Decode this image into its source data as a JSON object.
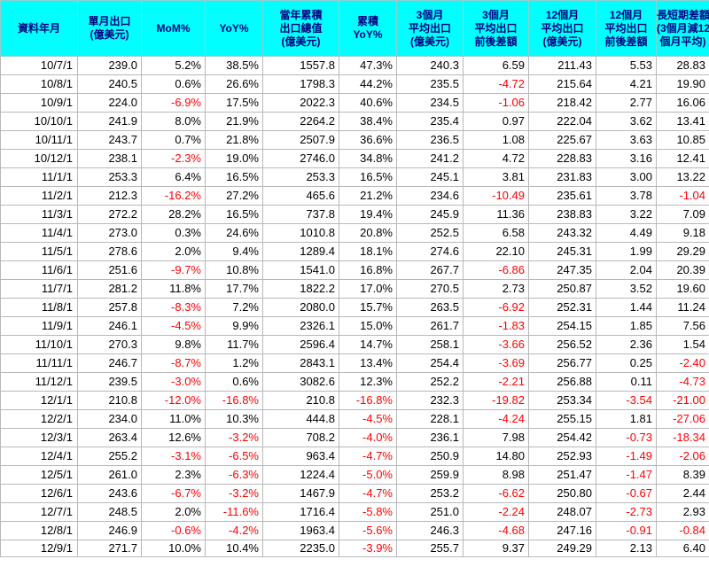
{
  "headers": [
    [
      "資料年月"
    ],
    [
      "單月出口",
      "(億美元)"
    ],
    [
      "MoM%"
    ],
    [
      "YoY%"
    ],
    [
      "當年累積",
      "出口總值",
      "(億美元)"
    ],
    [
      "累積",
      "YoY%"
    ],
    [
      "3個月",
      "平均出口",
      "(億美元)"
    ],
    [
      "3個月",
      "平均出口",
      "前後差額"
    ],
    [
      "12個月",
      "平均出口",
      "(億美元)"
    ],
    [
      "12個月",
      "平均出口",
      "前後差額"
    ],
    [
      "長短期差額",
      "(3個月減12",
      "個月平均)"
    ]
  ],
  "rows": [
    [
      "10/7/1",
      "239.0",
      "5.2%",
      "38.5%",
      "1557.8",
      "47.3%",
      "240.3",
      "6.59",
      "211.43",
      "5.53",
      "28.83"
    ],
    [
      "10/8/1",
      "240.5",
      "0.6%",
      "26.6%",
      "1798.3",
      "44.2%",
      "235.5",
      "-4.72",
      "215.64",
      "4.21",
      "19.90"
    ],
    [
      "10/9/1",
      "224.0",
      "-6.9%",
      "17.5%",
      "2022.3",
      "40.6%",
      "234.5",
      "-1.06",
      "218.42",
      "2.77",
      "16.06"
    ],
    [
      "10/10/1",
      "241.9",
      "8.0%",
      "21.9%",
      "2264.2",
      "38.4%",
      "235.4",
      "0.97",
      "222.04",
      "3.62",
      "13.41"
    ],
    [
      "10/11/1",
      "243.7",
      "0.7%",
      "21.8%",
      "2507.9",
      "36.6%",
      "236.5",
      "1.08",
      "225.67",
      "3.63",
      "10.85"
    ],
    [
      "10/12/1",
      "238.1",
      "-2.3%",
      "19.0%",
      "2746.0",
      "34.8%",
      "241.2",
      "4.72",
      "228.83",
      "3.16",
      "12.41"
    ],
    [
      "11/1/1",
      "253.3",
      "6.4%",
      "16.5%",
      "253.3",
      "16.5%",
      "245.1",
      "3.81",
      "231.83",
      "3.00",
      "13.22"
    ],
    [
      "11/2/1",
      "212.3",
      "-16.2%",
      "27.2%",
      "465.6",
      "21.2%",
      "234.6",
      "-10.49",
      "235.61",
      "3.78",
      "-1.04"
    ],
    [
      "11/3/1",
      "272.2",
      "28.2%",
      "16.5%",
      "737.8",
      "19.4%",
      "245.9",
      "11.36",
      "238.83",
      "3.22",
      "7.09"
    ],
    [
      "11/4/1",
      "273.0",
      "0.3%",
      "24.6%",
      "1010.8",
      "20.8%",
      "252.5",
      "6.58",
      "243.32",
      "4.49",
      "9.18"
    ],
    [
      "11/5/1",
      "278.6",
      "2.0%",
      "9.4%",
      "1289.4",
      "18.1%",
      "274.6",
      "22.10",
      "245.31",
      "1.99",
      "29.29"
    ],
    [
      "11/6/1",
      "251.6",
      "-9.7%",
      "10.8%",
      "1541.0",
      "16.8%",
      "267.7",
      "-6.86",
      "247.35",
      "2.04",
      "20.39"
    ],
    [
      "11/7/1",
      "281.2",
      "11.8%",
      "17.7%",
      "1822.2",
      "17.0%",
      "270.5",
      "2.73",
      "250.87",
      "3.52",
      "19.60"
    ],
    [
      "11/8/1",
      "257.8",
      "-8.3%",
      "7.2%",
      "2080.0",
      "15.7%",
      "263.5",
      "-6.92",
      "252.31",
      "1.44",
      "11.24"
    ],
    [
      "11/9/1",
      "246.1",
      "-4.5%",
      "9.9%",
      "2326.1",
      "15.0%",
      "261.7",
      "-1.83",
      "254.15",
      "1.85",
      "7.56"
    ],
    [
      "11/10/1",
      "270.3",
      "9.8%",
      "11.7%",
      "2596.4",
      "14.7%",
      "258.1",
      "-3.66",
      "256.52",
      "2.36",
      "1.54"
    ],
    [
      "11/11/1",
      "246.7",
      "-8.7%",
      "1.2%",
      "2843.1",
      "13.4%",
      "254.4",
      "-3.69",
      "256.77",
      "0.25",
      "-2.40"
    ],
    [
      "11/12/1",
      "239.5",
      "-3.0%",
      "0.6%",
      "3082.6",
      "12.3%",
      "252.2",
      "-2.21",
      "256.88",
      "0.11",
      "-4.73"
    ],
    [
      "12/1/1",
      "210.8",
      "-12.0%",
      "-16.8%",
      "210.8",
      "-16.8%",
      "232.3",
      "-19.82",
      "253.34",
      "-3.54",
      "-21.00"
    ],
    [
      "12/2/1",
      "234.0",
      "11.0%",
      "10.3%",
      "444.8",
      "-4.5%",
      "228.1",
      "-4.24",
      "255.15",
      "1.81",
      "-27.06"
    ],
    [
      "12/3/1",
      "263.4",
      "12.6%",
      "-3.2%",
      "708.2",
      "-4.0%",
      "236.1",
      "7.98",
      "254.42",
      "-0.73",
      "-18.34"
    ],
    [
      "12/4/1",
      "255.2",
      "-3.1%",
      "-6.5%",
      "963.4",
      "-4.7%",
      "250.9",
      "14.80",
      "252.93",
      "-1.49",
      "-2.06"
    ],
    [
      "12/5/1",
      "261.0",
      "2.3%",
      "-6.3%",
      "1224.4",
      "-5.0%",
      "259.9",
      "8.98",
      "251.47",
      "-1.47",
      "8.39"
    ],
    [
      "12/6/1",
      "243.6",
      "-6.7%",
      "-3.2%",
      "1467.9",
      "-4.7%",
      "253.2",
      "-6.62",
      "250.80",
      "-0.67",
      "2.44"
    ],
    [
      "12/7/1",
      "248.5",
      "2.0%",
      "-11.6%",
      "1716.4",
      "-5.8%",
      "251.0",
      "-2.24",
      "248.07",
      "-2.73",
      "2.93"
    ],
    [
      "12/8/1",
      "246.9",
      "-0.6%",
      "-4.2%",
      "1963.4",
      "-5.6%",
      "246.3",
      "-4.68",
      "247.16",
      "-0.91",
      "-0.84"
    ],
    [
      "12/9/1",
      "271.7",
      "10.0%",
      "10.4%",
      "2235.0",
      "-3.9%",
      "255.7",
      "9.37",
      "249.29",
      "2.13",
      "6.40"
    ]
  ],
  "colors": {
    "header_background": "#00ffff",
    "header_text": "#000080",
    "negative_text": "#ff0000",
    "text": "#000000",
    "grid": "#b8b8b8"
  }
}
